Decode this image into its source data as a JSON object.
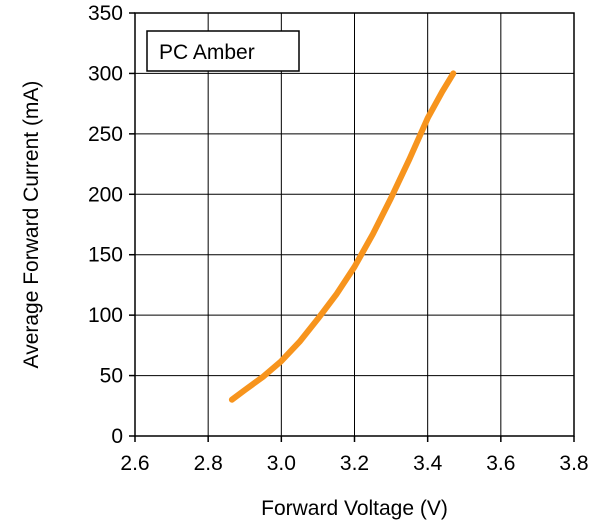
{
  "chart_data": {
    "type": "line",
    "xlabel": "Forward Voltage (V)",
    "ylabel": "Average Forward Current (mA)",
    "xlim": [
      2.6,
      3.8
    ],
    "ylim": [
      0,
      350
    ],
    "xticks": [
      "2.6",
      "2.8",
      "3.0",
      "3.2",
      "3.4",
      "3.6",
      "3.8"
    ],
    "yticks": [
      "0",
      "50",
      "100",
      "150",
      "200",
      "250",
      "300",
      "350"
    ],
    "grid": true,
    "legend_position": "top-left",
    "series": [
      {
        "name": "PC Amber",
        "color": "#f7941d",
        "x": [
          2.865,
          2.9,
          2.95,
          3.0,
          3.05,
          3.1,
          3.15,
          3.2,
          3.25,
          3.3,
          3.35,
          3.4,
          3.44,
          3.47
        ],
        "y": [
          30,
          38,
          49,
          62,
          78,
          97,
          117,
          140,
          167,
          197,
          229,
          263,
          285,
          300
        ]
      }
    ]
  }
}
